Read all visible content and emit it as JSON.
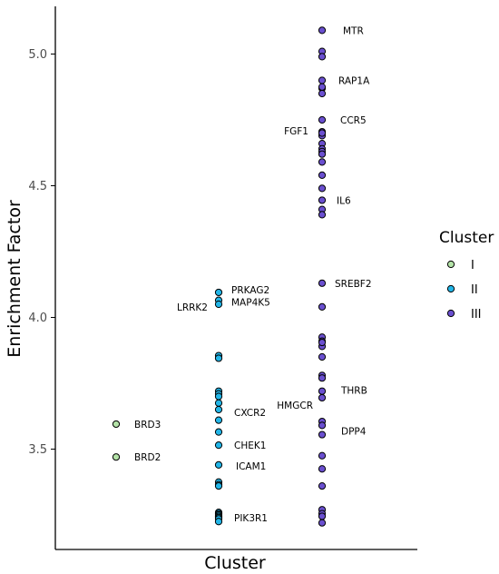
{
  "chart_data": {
    "type": "scatter",
    "xlabel": "Cluster",
    "ylabel": "Enrichment Factor",
    "ylim": [
      3.22,
      5.2
    ],
    "yticks": [
      "3.5",
      "4.0",
      "4.5",
      "5.0"
    ],
    "grid": false,
    "legend": {
      "title": "Cluster",
      "placement": "right",
      "entries": [
        {
          "label": "I",
          "color": "#b4e3a8"
        },
        {
          "label": "II",
          "color": "#22b6e8"
        },
        {
          "label": "III",
          "color": "#6a4fcf"
        }
      ]
    },
    "series": [
      {
        "name": "I",
        "x": [
          1,
          1
        ],
        "y": [
          3.595,
          3.47
        ],
        "labels": [
          "BRD3",
          "BRD2"
        ]
      },
      {
        "name": "II",
        "x": [
          2,
          2,
          2,
          2,
          2,
          2,
          2,
          2,
          2,
          2,
          2,
          2,
          2,
          2,
          2,
          2,
          2,
          2,
          2,
          2,
          2,
          2,
          2,
          2
        ],
        "y": [
          4.095,
          4.065,
          4.05,
          3.855,
          3.845,
          3.72,
          3.71,
          3.7,
          3.675,
          3.65,
          3.61,
          3.565,
          3.515,
          3.44,
          3.375,
          3.365,
          3.36,
          3.26,
          3.255,
          3.25,
          3.245,
          3.24,
          3.235,
          3.225
        ],
        "labels": [
          "PRKAG2",
          "MAP4K5",
          "LRRK2",
          "",
          "",
          "",
          "",
          "",
          "",
          "CXCR2",
          "",
          "",
          "CHEK1",
          "ICAM1",
          "",
          "",
          "",
          "",
          "",
          "",
          "",
          "PIK3R1",
          "",
          ""
        ]
      },
      {
        "name": "III",
        "x": [
          3,
          3,
          3,
          3,
          3,
          3,
          3,
          3,
          3,
          3,
          3,
          3,
          3,
          3,
          3,
          3,
          3,
          3,
          3,
          3,
          3,
          3,
          3,
          3,
          3,
          3,
          3,
          3,
          3,
          3,
          3,
          3,
          3,
          3,
          3,
          3,
          3,
          3,
          3,
          3,
          3,
          3
        ],
        "y": [
          5.09,
          5.01,
          4.99,
          4.9,
          4.87,
          4.85,
          4.75,
          4.705,
          4.69,
          4.66,
          4.64,
          4.63,
          4.59,
          4.54,
          4.49,
          4.445,
          4.41,
          4.39,
          4.13,
          4.04,
          3.925,
          3.91,
          3.89,
          3.85,
          3.78,
          3.77,
          3.72,
          3.695,
          3.605,
          3.59,
          3.475,
          3.425,
          3.36,
          3.27,
          3.255,
          3.245,
          3.22,
          3.905,
          3.555,
          4.62,
          4.875,
          4.7
        ],
        "labels": [
          "MTR",
          "",
          "",
          "RAP1A",
          "",
          "",
          "CCR5",
          "FGF1",
          "",
          "",
          "",
          "",
          "",
          "",
          "",
          "IL6",
          "",
          "",
          "SREBF2",
          "",
          "",
          "",
          "",
          "",
          "",
          "",
          "THRB",
          "HMGCR",
          "",
          "DPP4",
          "",
          "",
          "",
          "",
          "",
          "",
          "",
          "",
          "",
          "",
          "",
          ""
        ]
      }
    ]
  }
}
